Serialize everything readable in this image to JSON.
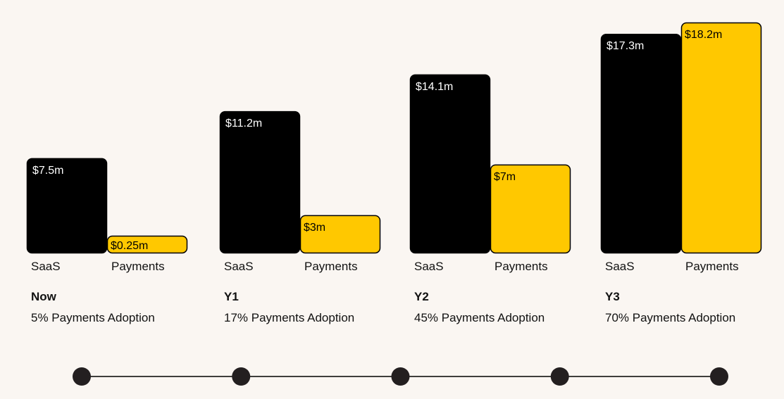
{
  "colors": {
    "background": "#FAF6F2",
    "saas": "#000000",
    "payments": "#FFC800",
    "outline": "#000000",
    "saas_text": "#FFFFFF",
    "payments_text": "#000000",
    "text": "#111111"
  },
  "chart_data": {
    "type": "bar",
    "categories": [
      "Now",
      "Y1",
      "Y2",
      "Y3"
    ],
    "subtitles": [
      "5% Payments Adoption",
      "17% Payments Adoption",
      "45% Payments Adoption",
      "70% Payments Adoption"
    ],
    "series": [
      {
        "name": "SaaS",
        "values": [
          7.5,
          11.2,
          14.1,
          17.3
        ],
        "labels": [
          "$7.5m",
          "$11.2m",
          "$14.1m",
          "$17.3m"
        ]
      },
      {
        "name": "Payments",
        "values": [
          0.25,
          3,
          7,
          18.2
        ],
        "labels": [
          "$0.25m",
          "$3m",
          "$7m",
          "$18.2m"
        ]
      }
    ],
    "bar_labels": [
      "SaaS",
      "Payments"
    ],
    "timeline_points": 5,
    "ylim": [
      0,
      18.2
    ],
    "grid": false
  }
}
